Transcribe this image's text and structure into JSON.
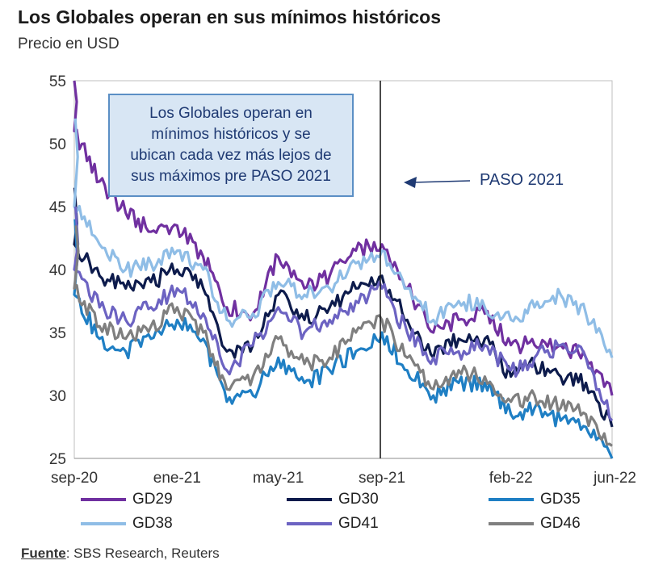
{
  "chart_data": {
    "type": "line",
    "title": "Los Globales operan en sus mínimos históricos",
    "subtitle": "Precio en USD",
    "ylim": [
      25,
      55
    ],
    "yticks": [
      "25",
      "30",
      "35",
      "40",
      "45",
      "50",
      "55"
    ],
    "xticks": [
      "sep-20",
      "ene-21",
      "may-21",
      "sep-21",
      "feb-22",
      "jun-22"
    ],
    "grid": false,
    "legend": "bottom",
    "annotation_box": [
      "Los Globales operan en",
      "mínimos históricos y se",
      "ubican cada vez más lejos de",
      "sus máximos pre PASO 2021"
    ],
    "vertical_marker": {
      "label": "PASO 2021",
      "x": "2021-09"
    },
    "series": [
      {
        "name": "GD29",
        "color": "#7030a0",
        "x": [
          "2020-09",
          "2020-09",
          "2020-10",
          "2020-11",
          "2020-12",
          "2021-01",
          "2021-02",
          "2021-03",
          "2021-04",
          "2021-05",
          "2021-06",
          "2021-07",
          "2021-08",
          "2021-09",
          "2021-10",
          "2021-11",
          "2021-12",
          "2022-01",
          "2022-02",
          "2022-03",
          "2022-04",
          "2022-05",
          "2022-06"
        ],
        "values": [
          55,
          51,
          47,
          44.5,
          43,
          43.5,
          41,
          37,
          36.5,
          41,
          38.5,
          39.5,
          41.5,
          42,
          38.5,
          35,
          36,
          36.5,
          34,
          34,
          34,
          33,
          30
        ]
      },
      {
        "name": "GD30",
        "color": "#0d1b4c",
        "x": [
          "2020-09",
          "2020-09",
          "2020-10",
          "2020-11",
          "2020-12",
          "2021-01",
          "2021-02",
          "2021-03",
          "2021-04",
          "2021-05",
          "2021-06",
          "2021-07",
          "2021-08",
          "2021-09",
          "2021-10",
          "2021-11",
          "2021-12",
          "2022-01",
          "2022-02",
          "2022-03",
          "2022-04",
          "2022-05",
          "2022-06"
        ],
        "values": [
          46.5,
          42,
          39.5,
          38.5,
          39,
          40,
          38.5,
          33.5,
          34,
          38,
          36,
          37,
          38.5,
          39.5,
          36,
          33,
          34.5,
          34.5,
          31.5,
          32.5,
          31.5,
          31,
          27.5
        ]
      },
      {
        "name": "GD35",
        "color": "#1f7fc4",
        "x": [
          "2020-09",
          "2020-09",
          "2020-10",
          "2020-11",
          "2020-12",
          "2021-01",
          "2021-02",
          "2021-03",
          "2021-04",
          "2021-05",
          "2021-06",
          "2021-07",
          "2021-08",
          "2021-09",
          "2021-10",
          "2021-11",
          "2021-12",
          "2022-01",
          "2022-02",
          "2022-03",
          "2022-04",
          "2022-05",
          "2022-06"
        ],
        "values": [
          44,
          38,
          34.5,
          33.5,
          34.5,
          36,
          34.5,
          29.5,
          30,
          33,
          31,
          32,
          33.5,
          35,
          32,
          30,
          31,
          31,
          28.5,
          29,
          28,
          27.5,
          25
        ]
      },
      {
        "name": "GD38",
        "color": "#8fbde6",
        "x": [
          "2020-09",
          "2020-09",
          "2020-10",
          "2020-11",
          "2020-12",
          "2021-01",
          "2021-02",
          "2021-03",
          "2021-04",
          "2021-05",
          "2021-06",
          "2021-07",
          "2021-08",
          "2021-09",
          "2021-10",
          "2021-11",
          "2021-12",
          "2022-01",
          "2022-02",
          "2022-03",
          "2022-04",
          "2022-05",
          "2022-06"
        ],
        "values": [
          52,
          45,
          42,
          40,
          40.5,
          41.5,
          40,
          36,
          36.5,
          39,
          38,
          38.5,
          40.5,
          41.5,
          38.5,
          36,
          37.5,
          37,
          36,
          37,
          38,
          36.5,
          33
        ]
      },
      {
        "name": "GD41",
        "color": "#6c63c2",
        "x": [
          "2020-09",
          "2020-09",
          "2020-10",
          "2020-11",
          "2020-12",
          "2021-01",
          "2021-02",
          "2021-03",
          "2021-04",
          "2021-05",
          "2021-06",
          "2021-07",
          "2021-08",
          "2021-09",
          "2021-10",
          "2021-11",
          "2021-12",
          "2022-01",
          "2022-02",
          "2022-03",
          "2022-04",
          "2022-05",
          "2022-06"
        ],
        "values": [
          45,
          40,
          37,
          36,
          37,
          38.5,
          36.5,
          32,
          34,
          37,
          35,
          36,
          37.5,
          38.5,
          35,
          33,
          33.5,
          34,
          32,
          33,
          34,
          33,
          28
        ]
      },
      {
        "name": "GD46",
        "color": "#7f7f7f",
        "x": [
          "2020-09",
          "2020-09",
          "2020-10",
          "2020-11",
          "2020-12",
          "2021-01",
          "2021-02",
          "2021-03",
          "2021-04",
          "2021-05",
          "2021-06",
          "2021-07",
          "2021-08",
          "2021-09",
          "2021-10",
          "2021-11",
          "2021-12",
          "2022-01",
          "2022-02",
          "2022-03",
          "2022-04",
          "2022-05",
          "2022-06"
        ],
        "values": [
          43.5,
          38.5,
          35.5,
          34.5,
          35.5,
          37,
          35,
          30.5,
          31.5,
          34.5,
          32.5,
          33,
          35,
          36,
          33,
          30.5,
          32,
          31.5,
          29.5,
          30,
          29,
          28.5,
          26
        ]
      }
    ]
  },
  "source": {
    "label": "Fuente",
    "text": ": SBS Research, Reuters"
  }
}
